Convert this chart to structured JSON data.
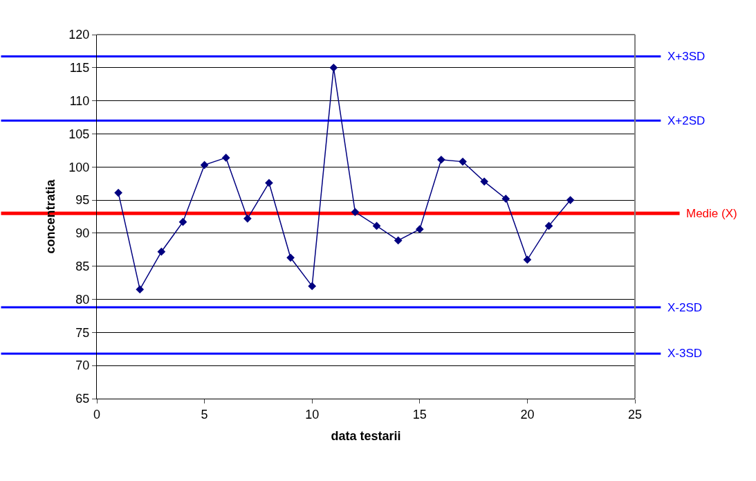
{
  "chart_data": {
    "type": "line",
    "xlabel": "data testarii",
    "ylabel": "concentratia",
    "x": [
      1,
      2,
      3,
      4,
      5,
      6,
      7,
      8,
      9,
      10,
      11,
      12,
      13,
      14,
      15,
      16,
      17,
      18,
      19,
      20,
      21,
      22
    ],
    "series": [
      {
        "color": "#000080",
        "values": [
          96.1,
          81.5,
          87.2,
          91.7,
          100.3,
          101.4,
          92.2,
          97.6,
          86.3,
          82.0,
          115.0,
          93.2,
          91.1,
          88.9,
          90.6,
          101.1,
          100.8,
          97.8,
          95.2,
          86.0,
          91.1,
          95.0
        ]
      }
    ],
    "xlim": [
      0,
      25
    ],
    "xticks": [
      0,
      5,
      10,
      15,
      20,
      25
    ],
    "ylim": [
      65,
      120
    ],
    "yticks": [
      65,
      70,
      75,
      80,
      85,
      90,
      95,
      100,
      105,
      110,
      115,
      120
    ],
    "grid": "y",
    "marker": "diamond",
    "line_style": "solid",
    "ref_lines": [
      {
        "axis": "y",
        "value": 116.7,
        "label": "X+3SD",
        "color": "#0000ff"
      },
      {
        "axis": "y",
        "value": 107.0,
        "label": "X+2SD",
        "color": "#0000ff"
      },
      {
        "axis": "y",
        "value": 93.0,
        "label": "Medie (X)",
        "color": "#ff0000"
      },
      {
        "axis": "y",
        "value": 78.8,
        "label": "X-2SD",
        "color": "#0000ff"
      },
      {
        "axis": "y",
        "value": 71.8,
        "label": "X-3SD",
        "color": "#0000ff"
      }
    ]
  }
}
